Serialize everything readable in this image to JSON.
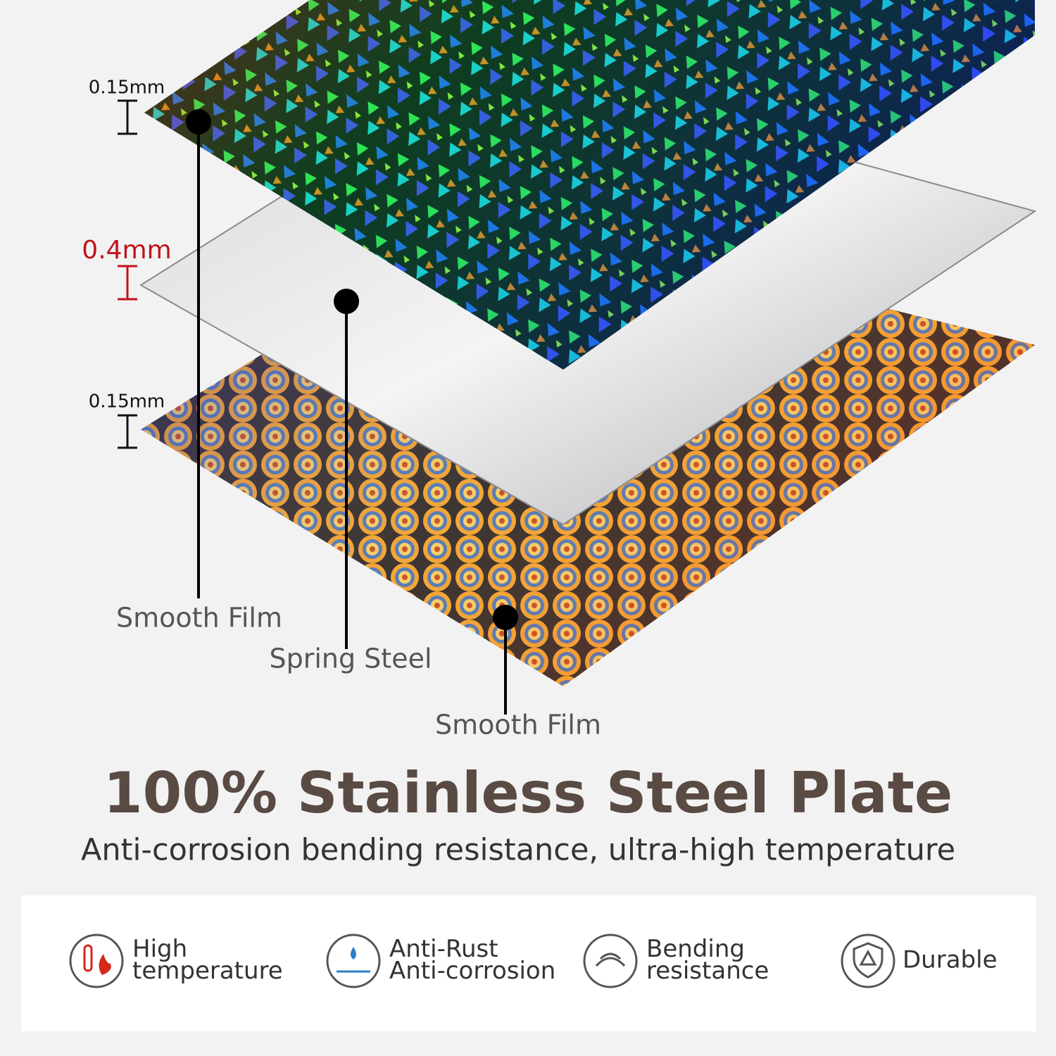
{
  "layers": [
    {
      "thickness": "0.15mm",
      "label": "Smooth Film"
    },
    {
      "thickness": "0.4mm",
      "label": "Spring Steel"
    },
    {
      "thickness": "0.15mm",
      "label": "Smooth Film"
    }
  ],
  "headline": "100% Stainless Steel Plate",
  "subheadline": "Anti-corrosion bending resistance, ultra-high temperature",
  "features": [
    {
      "lines": [
        "High",
        "temperature"
      ]
    },
    {
      "lines": [
        "Anti-Rust",
        "Anti-corrosion"
      ]
    },
    {
      "lines": [
        "Bending",
        "resistance"
      ]
    },
    {
      "lines": [
        "Durable"
      ]
    }
  ]
}
